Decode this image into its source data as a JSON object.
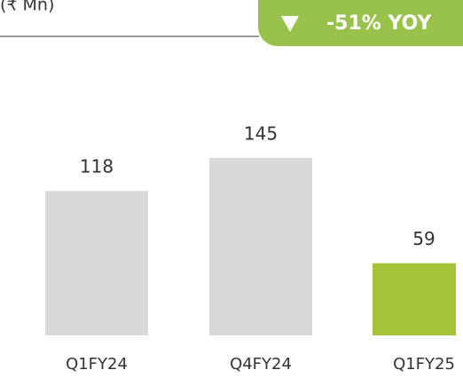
{
  "chart_data": {
    "type": "bar",
    "subtitle": "(₹ Mn)",
    "annotation": "-51% YOY",
    "categories": [
      "Q1FY24",
      "Q4FY24",
      "Q1FY25"
    ],
    "values": [
      118,
      145,
      59
    ],
    "colors": [
      "#d9d9d9",
      "#d9d9d9",
      "#a5c43a"
    ]
  }
}
